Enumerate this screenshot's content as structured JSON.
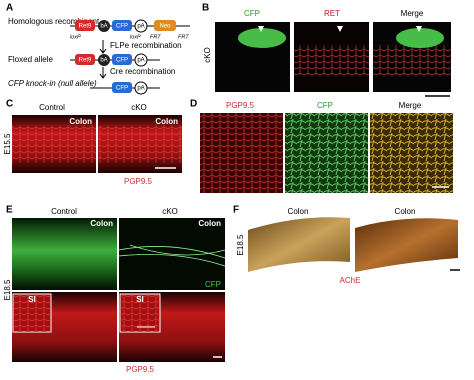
{
  "panels": {
    "A": {
      "letter": "A",
      "rows": [
        {
          "title": "Homologous recombinant",
          "elements": [
            "Ret9",
            "bA",
            "CFP",
            "pA",
            "Neo"
          ],
          "sites": [
            "loxP",
            "loxP",
            "FRT",
            "FRT"
          ]
        },
        {
          "title": "Floxed allele",
          "elements": [
            "Ret9",
            "bA",
            "CFP",
            "pA"
          ]
        },
        {
          "title": "CFP knock-in (null allele)",
          "elements": [
            "CFP",
            "pA"
          ]
        }
      ],
      "steps": [
        "FLPe recombination",
        "Cre recombination"
      ]
    },
    "B": {
      "letter": "B",
      "columns": [
        "CFP",
        "RET",
        "Merge"
      ],
      "row_label": "cKO"
    },
    "C": {
      "letter": "C",
      "columns": [
        "Control",
        "cKO"
      ],
      "tissue": [
        "Colon",
        "Colon"
      ],
      "stage": "E15.5",
      "stain": "PGP9.5"
    },
    "D": {
      "letter": "D",
      "columns": [
        "PGP9.5",
        "CFP",
        "Merge"
      ]
    },
    "E": {
      "letter": "E",
      "columns": [
        "Control",
        "cKO"
      ],
      "tissue": [
        "Colon",
        "Colon"
      ],
      "stain_top": "CFP",
      "inset": [
        "SI",
        "SI"
      ],
      "stage": "E18.5",
      "stain_bottom": "PGP9.5"
    },
    "F": {
      "letter": "F",
      "columns": [
        "Colon",
        "Colon"
      ],
      "stage": "E18.5",
      "stain": "AChE"
    }
  }
}
